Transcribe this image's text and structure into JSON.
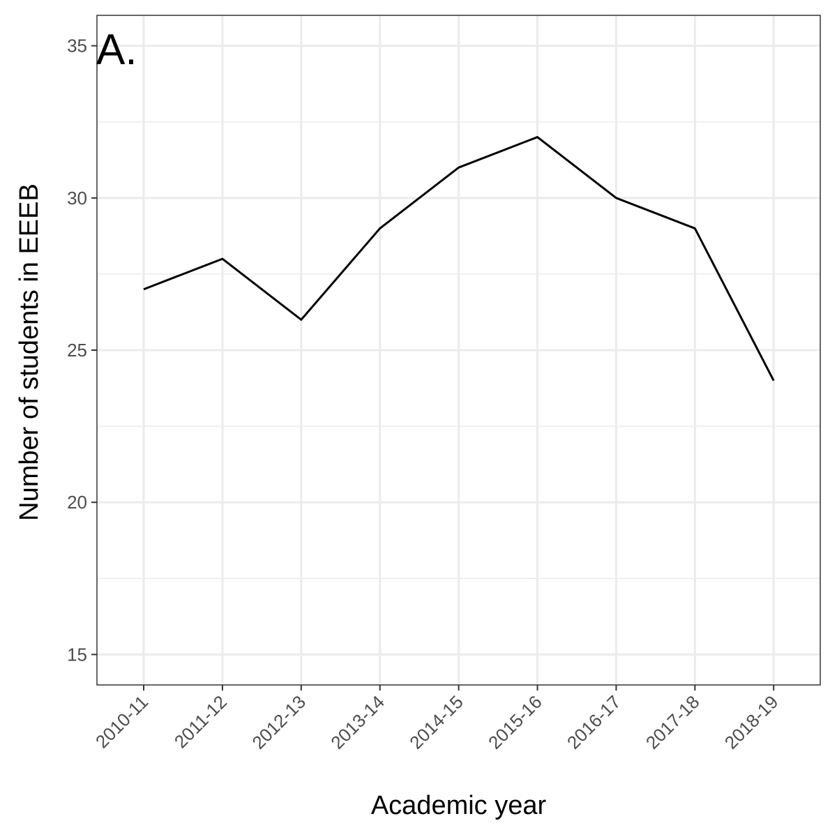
{
  "chart_data": {
    "type": "line",
    "panel_tag": "A.",
    "title": "",
    "xlabel": "Academic year",
    "ylabel": "Number of students in EEEB",
    "categories": [
      "2010-11",
      "2011-12",
      "2012-13",
      "2013-14",
      "2014-15",
      "2015-16",
      "2016-17",
      "2017-18",
      "2018-19"
    ],
    "series": [
      {
        "values": [
          27,
          28,
          26,
          29,
          31,
          32,
          30,
          29,
          24
        ]
      }
    ],
    "ylim": [
      14,
      36
    ],
    "y_ticks": [
      "15",
      "20",
      "25",
      "30",
      "35"
    ],
    "y_tick_values": [
      15,
      20,
      25,
      30,
      35
    ],
    "y_minor_grid": [
      17.5,
      22.5,
      27.5,
      32.5
    ],
    "grid": true,
    "legend": "none",
    "colors": {
      "line": "#000000",
      "grid": "#ebebeb",
      "panel_border": "#333333",
      "tick_text": "#4d4d4d",
      "background": "#ffffff"
    }
  }
}
